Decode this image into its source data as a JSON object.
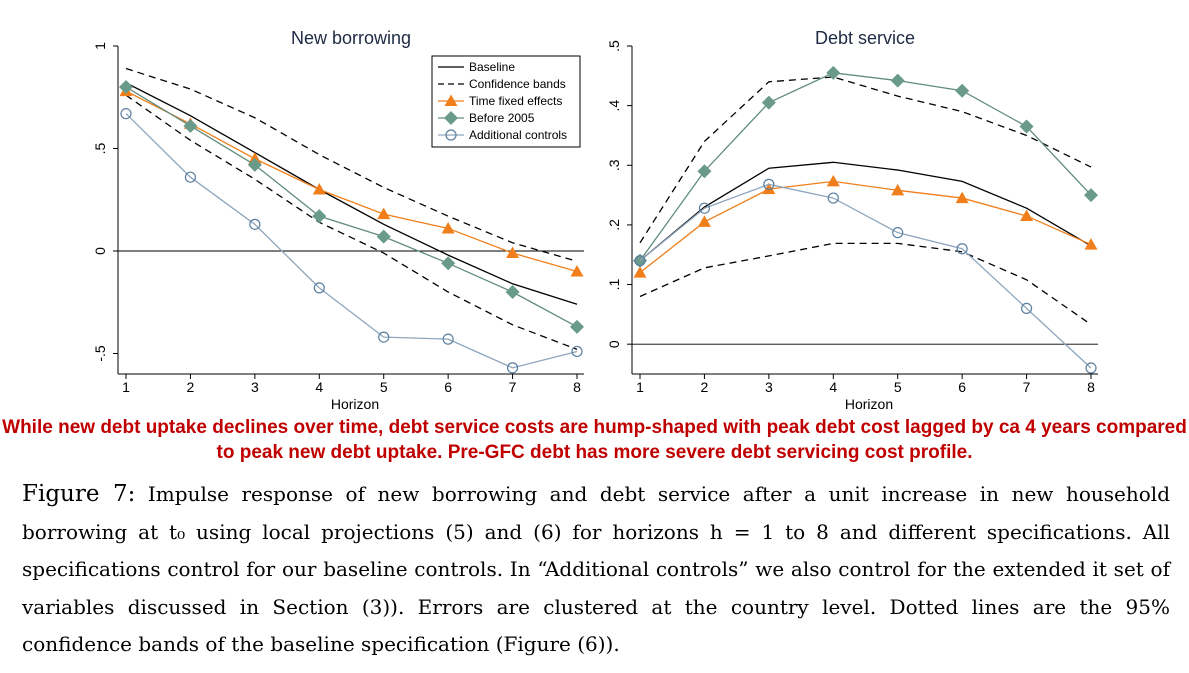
{
  "charts": {
    "chart_data": [
      {
        "type": "line",
        "title": "New borrowing",
        "xlabel": "Horizon",
        "ylabel": "",
        "x": [
          1,
          2,
          3,
          4,
          5,
          6,
          7,
          8
        ],
        "xticks": [
          "1",
          "2",
          "3",
          "4",
          "5",
          "6",
          "7",
          "8"
        ],
        "ylim": [
          -0.6,
          1.0
        ],
        "yticks": [
          -0.5,
          0,
          0.5,
          1
        ],
        "ytick_labels": [
          "-.5",
          "0",
          ".5",
          "1"
        ],
        "legend_position": "top-right",
        "series": [
          {
            "name": "Baseline",
            "key": "baseline",
            "values": [
              0.82,
              0.66,
              0.48,
              0.3,
              0.13,
              -0.02,
              -0.16,
              -0.26
            ]
          },
          {
            "name": "Confidence bands",
            "key": "upper",
            "values": [
              0.89,
              0.79,
              0.65,
              0.47,
              0.31,
              0.17,
              0.04,
              -0.05
            ]
          },
          {
            "name": "Confidence bands",
            "key": "lower",
            "values": [
              0.76,
              0.54,
              0.35,
              0.14,
              -0.01,
              -0.2,
              -0.36,
              -0.48
            ]
          },
          {
            "name": "Time fixed effects",
            "key": "tfe",
            "values": [
              0.78,
              0.62,
              0.45,
              0.3,
              0.18,
              0.11,
              -0.01,
              -0.1
            ]
          },
          {
            "name": "Before 2005",
            "key": "pre",
            "values": [
              0.8,
              0.61,
              0.42,
              0.17,
              0.07,
              -0.06,
              -0.2,
              -0.37
            ]
          },
          {
            "name": "Additional controls",
            "key": "add",
            "values": [
              0.67,
              0.36,
              0.13,
              -0.18,
              -0.42,
              -0.43,
              -0.57,
              -0.49
            ]
          }
        ]
      },
      {
        "type": "line",
        "title": "Debt service",
        "xlabel": "Horizon",
        "ylabel": "",
        "x": [
          1,
          2,
          3,
          4,
          5,
          6,
          7,
          8
        ],
        "xticks": [
          "1",
          "2",
          "3",
          "4",
          "5",
          "6",
          "7",
          "8"
        ],
        "ylim": [
          -0.05,
          0.5
        ],
        "yticks": [
          0,
          0.1,
          0.2,
          0.3,
          0.4,
          0.5
        ],
        "ytick_labels": [
          "0",
          ".1",
          ".2",
          ".3",
          ".4",
          ".5"
        ],
        "series": [
          {
            "name": "Baseline",
            "key": "baseline",
            "values": [
              0.14,
              0.23,
              0.295,
              0.305,
              0.292,
              0.273,
              0.228,
              0.165
            ]
          },
          {
            "name": "Confidence bands",
            "key": "upper",
            "values": [
              0.17,
              0.34,
              0.44,
              0.448,
              0.416,
              0.39,
              0.35,
              0.297
            ]
          },
          {
            "name": "Confidence bands",
            "key": "lower",
            "values": [
              0.08,
              0.128,
              0.148,
              0.169,
              0.169,
              0.155,
              0.108,
              0.033
            ]
          },
          {
            "name": "Time fixed effects",
            "key": "tfe",
            "values": [
              0.12,
              0.205,
              0.26,
              0.273,
              0.258,
              0.245,
              0.215,
              0.167
            ]
          },
          {
            "name": "Before 2005",
            "key": "pre",
            "values": [
              0.14,
              0.29,
              0.405,
              0.455,
              0.442,
              0.425,
              0.365,
              0.25
            ]
          },
          {
            "name": "Additional controls",
            "key": "add",
            "values": [
              0.14,
              0.228,
              0.268,
              0.245,
              0.187,
              0.16,
              0.06,
              -0.04
            ]
          }
        ]
      }
    ]
  },
  "highlight_text": "While new debt uptake declines over time, debt service costs are hump-shaped with peak debt cost lagged by ca 4 years compared to peak new debt uptake. Pre-GFC debt has more severe debt servicing cost profile.",
  "caption": {
    "label": "Figure 7:",
    "text": "Impulse response of new borrowing and debt service after a unit increase in new household borrowing at t₀ using local projections (5) and (6) for horizons h = 1 to 8 and different specifications. All specifications control for our baseline controls. In “Additional controls” we also control for the extended it set of variables discussed in Section (3)). Errors are clustered at the country level. Dotted lines are the 95% confidence bands of the baseline specification (Figure (6))."
  },
  "colors": {
    "baseline": "#000000",
    "bands": "#000000",
    "time_fe": "#f07f1b",
    "before_2005": "#5f8c7d",
    "before_2005_marker": "#6a9a8a",
    "additional": "#8fa6bd",
    "additional_marker": "#5b7f9f",
    "highlight": "#c00000"
  }
}
